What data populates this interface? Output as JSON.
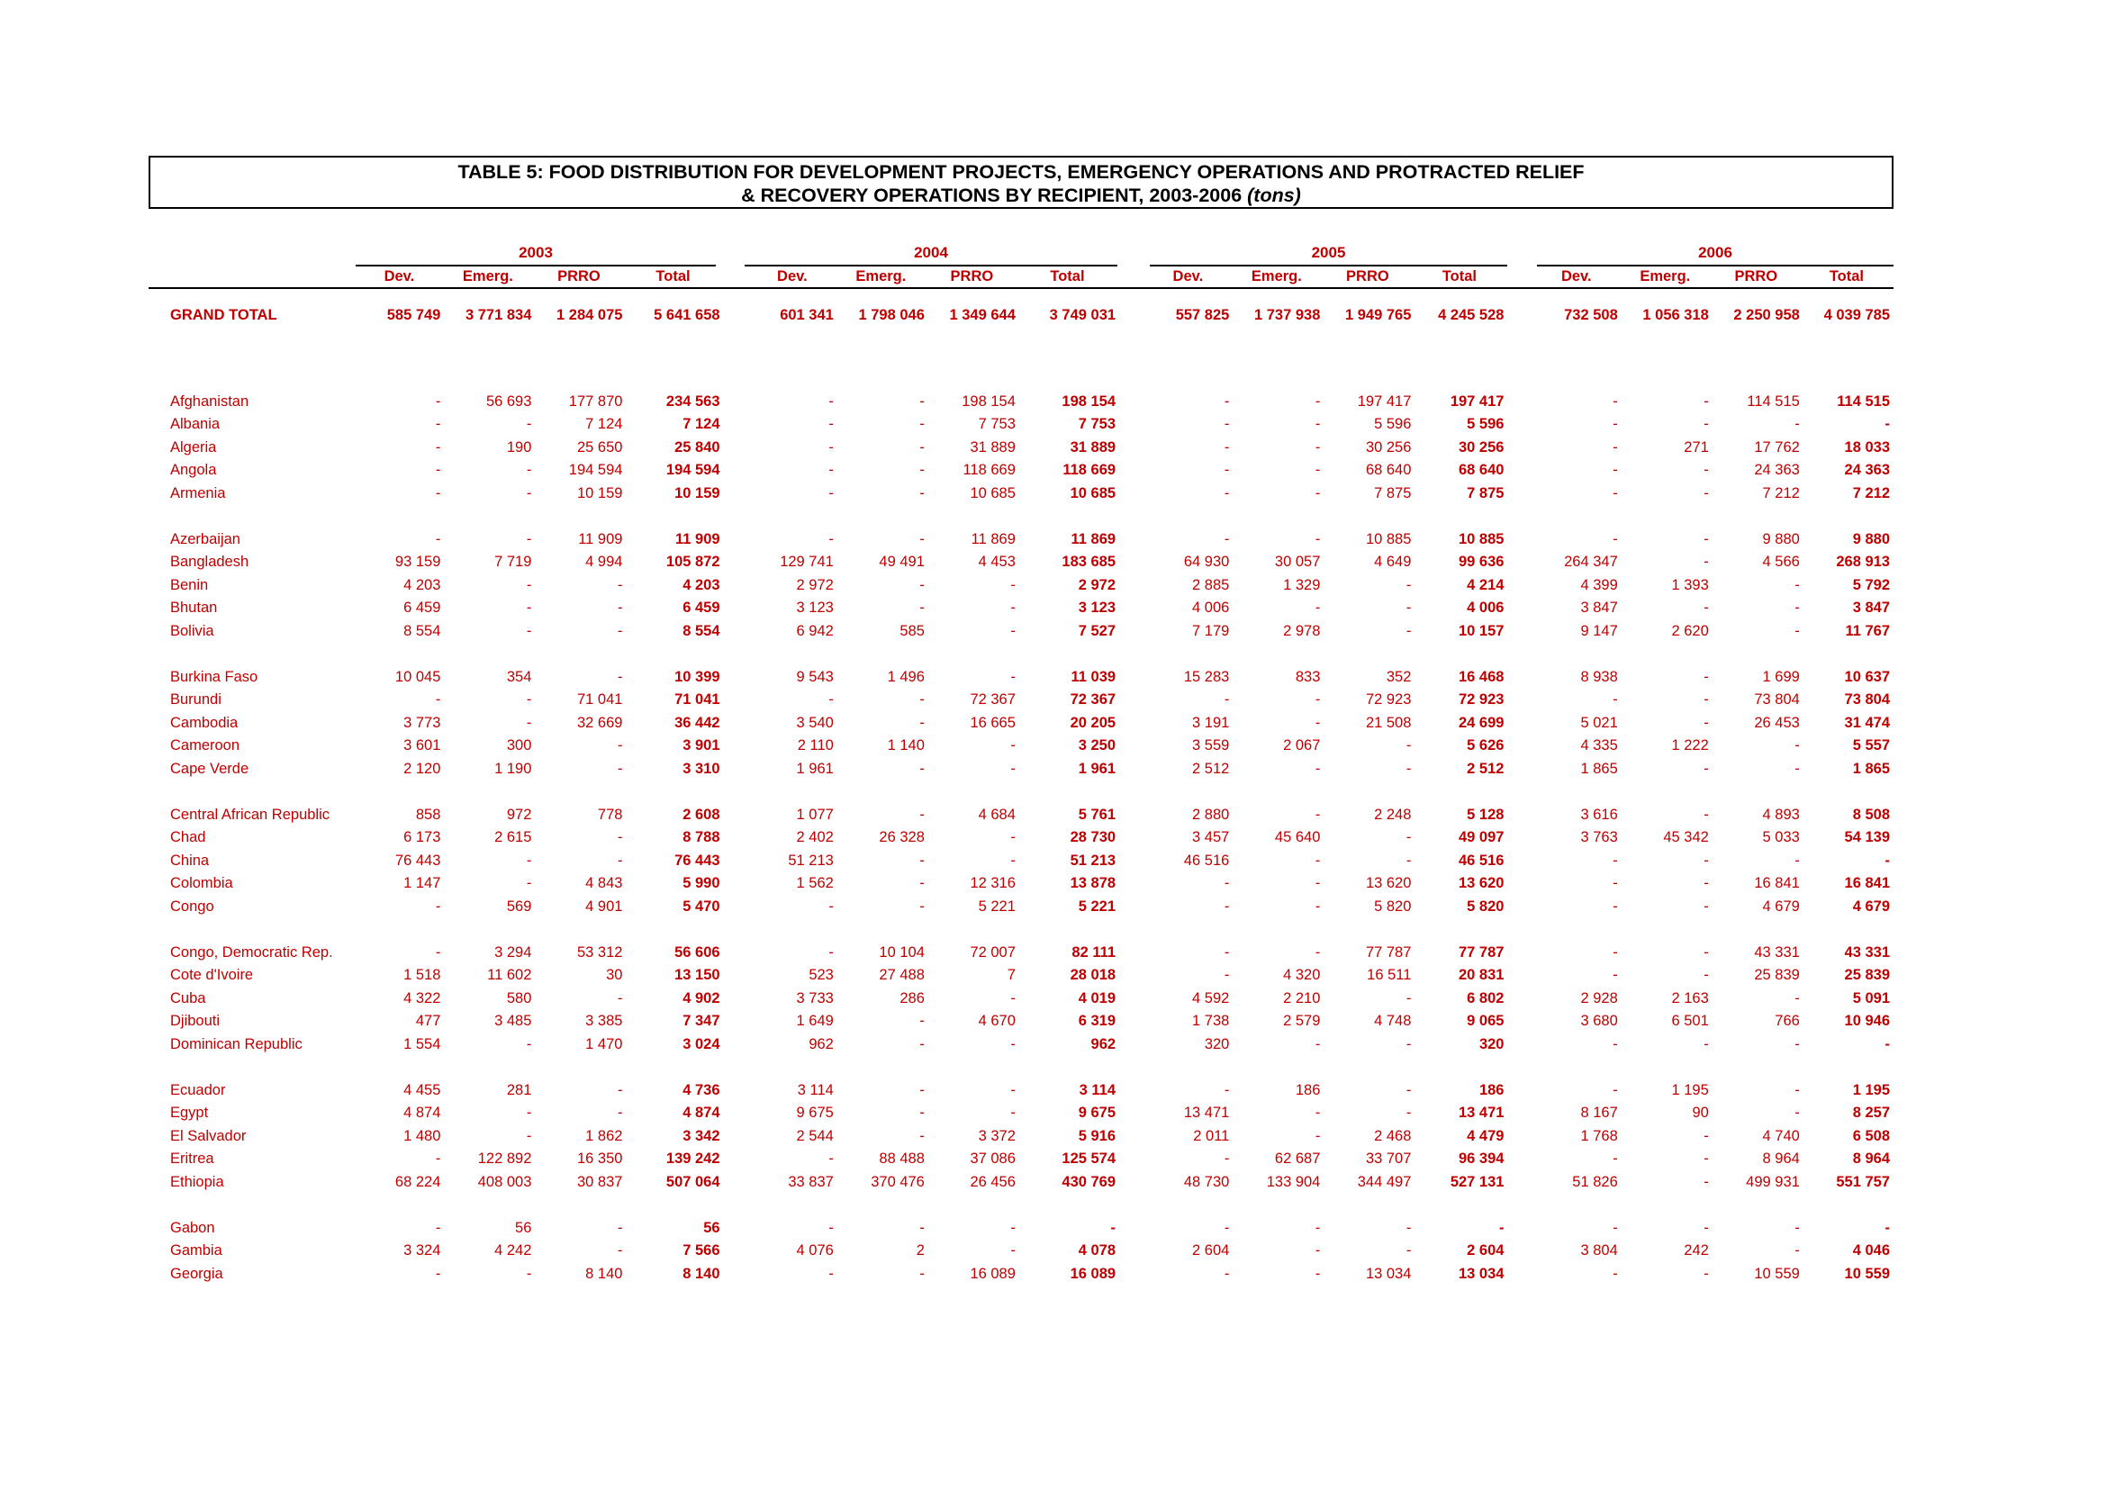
{
  "title": {
    "line1": "TABLE 5: FOOD DISTRIBUTION FOR DEVELOPMENT PROJECTS, EMERGENCY OPERATIONS AND PROTRACTED RELIEF",
    "line2": "& RECOVERY OPERATIONS BY RECIPIENT, 2003-2006",
    "unit": "(tons)"
  },
  "years": [
    "2003",
    "2004",
    "2005",
    "2006"
  ],
  "columns": [
    "Dev.",
    "Emerg.",
    "PRRO",
    "Total"
  ],
  "grand_total": {
    "label": "GRAND TOTAL",
    "values": [
      "585 749",
      "3 771 834",
      "1 284 075",
      "5 641 658",
      "601 341",
      "1 798 046",
      "1 349 644",
      "3 749 031",
      "557 825",
      "1 737 938",
      "1 949 765",
      "4 245 528",
      "732 508",
      "1 056 318",
      "2 250 958",
      "4 039 785"
    ]
  },
  "groups": [
    [
      {
        "country": "Afghanistan",
        "values": [
          "-",
          "56 693",
          "177 870",
          "234 563",
          "-",
          "-",
          "198 154",
          "198 154",
          "-",
          "-",
          "197 417",
          "197 417",
          "-",
          "-",
          "114 515",
          "114 515"
        ]
      },
      {
        "country": "Albania",
        "values": [
          "-",
          "-",
          "7 124",
          "7 124",
          "-",
          "-",
          "7 753",
          "7 753",
          "-",
          "-",
          "5 596",
          "5 596",
          "-",
          "-",
          "-",
          "-"
        ]
      },
      {
        "country": "Algeria",
        "values": [
          "-",
          "190",
          "25 650",
          "25 840",
          "-",
          "-",
          "31 889",
          "31 889",
          "-",
          "-",
          "30 256",
          "30 256",
          "-",
          "271",
          "17 762",
          "18 033"
        ]
      },
      {
        "country": "Angola",
        "values": [
          "-",
          "-",
          "194 594",
          "194 594",
          "-",
          "-",
          "118 669",
          "118 669",
          "-",
          "-",
          "68 640",
          "68 640",
          "-",
          "-",
          "24 363",
          "24 363"
        ]
      },
      {
        "country": "Armenia",
        "values": [
          "-",
          "-",
          "10 159",
          "10 159",
          "-",
          "-",
          "10 685",
          "10 685",
          "-",
          "-",
          "7 875",
          "7 875",
          "-",
          "-",
          "7 212",
          "7 212"
        ]
      }
    ],
    [
      {
        "country": "Azerbaijan",
        "values": [
          "-",
          "-",
          "11 909",
          "11 909",
          "-",
          "-",
          "11 869",
          "11 869",
          "-",
          "-",
          "10 885",
          "10 885",
          "-",
          "-",
          "9 880",
          "9 880"
        ]
      },
      {
        "country": "Bangladesh",
        "values": [
          "93 159",
          "7 719",
          "4 994",
          "105 872",
          "129 741",
          "49 491",
          "4 453",
          "183 685",
          "64 930",
          "30 057",
          "4 649",
          "99 636",
          "264 347",
          "-",
          "4 566",
          "268 913"
        ]
      },
      {
        "country": "Benin",
        "values": [
          "4 203",
          "-",
          "-",
          "4 203",
          "2 972",
          "-",
          "-",
          "2 972",
          "2 885",
          "1 329",
          "-",
          "4 214",
          "4 399",
          "1 393",
          "-",
          "5 792"
        ]
      },
      {
        "country": "Bhutan",
        "values": [
          "6 459",
          "-",
          "-",
          "6 459",
          "3 123",
          "-",
          "-",
          "3 123",
          "4 006",
          "-",
          "-",
          "4 006",
          "3 847",
          "-",
          "-",
          "3 847"
        ]
      },
      {
        "country": "Bolivia",
        "values": [
          "8 554",
          "-",
          "-",
          "8 554",
          "6 942",
          "585",
          "-",
          "7 527",
          "7 179",
          "2 978",
          "-",
          "10 157",
          "9 147",
          "2 620",
          "-",
          "11 767"
        ]
      }
    ],
    [
      {
        "country": "Burkina Faso",
        "values": [
          "10 045",
          "354",
          "-",
          "10 399",
          "9 543",
          "1 496",
          "-",
          "11 039",
          "15 283",
          "833",
          "352",
          "16 468",
          "8 938",
          "-",
          "1 699",
          "10 637"
        ]
      },
      {
        "country": "Burundi",
        "values": [
          "-",
          "-",
          "71 041",
          "71 041",
          "-",
          "-",
          "72 367",
          "72 367",
          "-",
          "-",
          "72 923",
          "72 923",
          "-",
          "-",
          "73 804",
          "73 804"
        ]
      },
      {
        "country": "Cambodia",
        "values": [
          "3 773",
          "-",
          "32 669",
          "36 442",
          "3 540",
          "-",
          "16 665",
          "20 205",
          "3 191",
          "-",
          "21 508",
          "24 699",
          "5 021",
          "-",
          "26 453",
          "31 474"
        ]
      },
      {
        "country": "Cameroon",
        "values": [
          "3 601",
          "300",
          "-",
          "3 901",
          "2 110",
          "1 140",
          "-",
          "3 250",
          "3 559",
          "2 067",
          "-",
          "5 626",
          "4 335",
          "1 222",
          "-",
          "5 557"
        ]
      },
      {
        "country": "Cape Verde",
        "values": [
          "2 120",
          "1 190",
          "-",
          "3 310",
          "1 961",
          "-",
          "-",
          "1 961",
          "2 512",
          "-",
          "-",
          "2 512",
          "1 865",
          "-",
          "-",
          "1 865"
        ]
      }
    ],
    [
      {
        "country": "Central African Republic",
        "values": [
          "858",
          "972",
          "778",
          "2 608",
          "1 077",
          "-",
          "4 684",
          "5 761",
          "2 880",
          "-",
          "2 248",
          "5 128",
          "3 616",
          "-",
          "4 893",
          "8 508"
        ]
      },
      {
        "country": "Chad",
        "values": [
          "6 173",
          "2 615",
          "-",
          "8 788",
          "2 402",
          "26 328",
          "-",
          "28 730",
          "3 457",
          "45 640",
          "-",
          "49 097",
          "3 763",
          "45 342",
          "5 033",
          "54 139"
        ]
      },
      {
        "country": "China",
        "values": [
          "76 443",
          "-",
          "-",
          "76 443",
          "51 213",
          "-",
          "-",
          "51 213",
          "46 516",
          "-",
          "-",
          "46 516",
          "-",
          "-",
          "-",
          "-"
        ]
      },
      {
        "country": "Colombia",
        "values": [
          "1 147",
          "-",
          "4 843",
          "5 990",
          "1 562",
          "-",
          "12 316",
          "13 878",
          "-",
          "-",
          "13 620",
          "13 620",
          "-",
          "-",
          "16 841",
          "16 841"
        ]
      },
      {
        "country": "Congo",
        "values": [
          "-",
          "569",
          "4 901",
          "5 470",
          "-",
          "-",
          "5 221",
          "5 221",
          "-",
          "-",
          "5 820",
          "5 820",
          "-",
          "-",
          "4 679",
          "4 679"
        ]
      }
    ],
    [
      {
        "country": "Congo, Democratic Rep.",
        "values": [
          "-",
          "3 294",
          "53 312",
          "56 606",
          "-",
          "10 104",
          "72 007",
          "82 111",
          "-",
          "-",
          "77 787",
          "77 787",
          "-",
          "-",
          "43 331",
          "43 331"
        ]
      },
      {
        "country": "Cote d'Ivoire",
        "values": [
          "1 518",
          "11 602",
          "30",
          "13 150",
          "523",
          "27 488",
          "7",
          "28 018",
          "-",
          "4 320",
          "16 511",
          "20 831",
          "-",
          "-",
          "25 839",
          "25 839"
        ]
      },
      {
        "country": "Cuba",
        "values": [
          "4 322",
          "580",
          "-",
          "4 902",
          "3 733",
          "286",
          "-",
          "4 019",
          "4 592",
          "2 210",
          "-",
          "6 802",
          "2 928",
          "2 163",
          "-",
          "5 091"
        ]
      },
      {
        "country": "Djibouti",
        "values": [
          "477",
          "3 485",
          "3 385",
          "7 347",
          "1 649",
          "-",
          "4 670",
          "6 319",
          "1 738",
          "2 579",
          "4 748",
          "9 065",
          "3 680",
          "6 501",
          "766",
          "10 946"
        ]
      },
      {
        "country": "Dominican Republic",
        "values": [
          "1 554",
          "-",
          "1 470",
          "3 024",
          "962",
          "-",
          "-",
          "962",
          "320",
          "-",
          "-",
          "320",
          "-",
          "-",
          "-",
          "-"
        ]
      }
    ],
    [
      {
        "country": "Ecuador",
        "values": [
          "4 455",
          "281",
          "-",
          "4 736",
          "3 114",
          "-",
          "-",
          "3 114",
          "-",
          "186",
          "-",
          "186",
          "-",
          "1 195",
          "-",
          "1 195"
        ]
      },
      {
        "country": "Egypt",
        "values": [
          "4 874",
          "-",
          "-",
          "4 874",
          "9 675",
          "-",
          "-",
          "9 675",
          "13 471",
          "-",
          "-",
          "13 471",
          "8 167",
          "90",
          "-",
          "8 257"
        ]
      },
      {
        "country": "El Salvador",
        "values": [
          "1 480",
          "-",
          "1 862",
          "3 342",
          "2 544",
          "-",
          "3 372",
          "5 916",
          "2 011",
          "-",
          "2 468",
          "4 479",
          "1 768",
          "-",
          "4 740",
          "6 508"
        ]
      },
      {
        "country": "Eritrea",
        "values": [
          "-",
          "122 892",
          "16 350",
          "139 242",
          "-",
          "88 488",
          "37 086",
          "125 574",
          "-",
          "62 687",
          "33 707",
          "96 394",
          "-",
          "-",
          "8 964",
          "8 964"
        ]
      },
      {
        "country": "Ethiopia",
        "values": [
          "68 224",
          "408 003",
          "30 837",
          "507 064",
          "33 837",
          "370 476",
          "26 456",
          "430 769",
          "48 730",
          "133 904",
          "344 497",
          "527 131",
          "51 826",
          "-",
          "499 931",
          "551 757"
        ]
      }
    ],
    [
      {
        "country": "Gabon",
        "values": [
          "-",
          "56",
          "-",
          "56",
          "-",
          "-",
          "-",
          "-",
          "-",
          "-",
          "-",
          "-",
          "-",
          "-",
          "-",
          "-"
        ]
      },
      {
        "country": "Gambia",
        "values": [
          "3 324",
          "4 242",
          "-",
          "7 566",
          "4 076",
          "2",
          "-",
          "4 078",
          "2 604",
          "-",
          "-",
          "2 604",
          "3 804",
          "242",
          "-",
          "4 046"
        ]
      },
      {
        "country": "Georgia",
        "values": [
          "-",
          "-",
          "8 140",
          "8 140",
          "-",
          "-",
          "16 089",
          "16 089",
          "-",
          "-",
          "13 034",
          "13 034",
          "-",
          "-",
          "10 559",
          "10 559"
        ]
      }
    ]
  ]
}
